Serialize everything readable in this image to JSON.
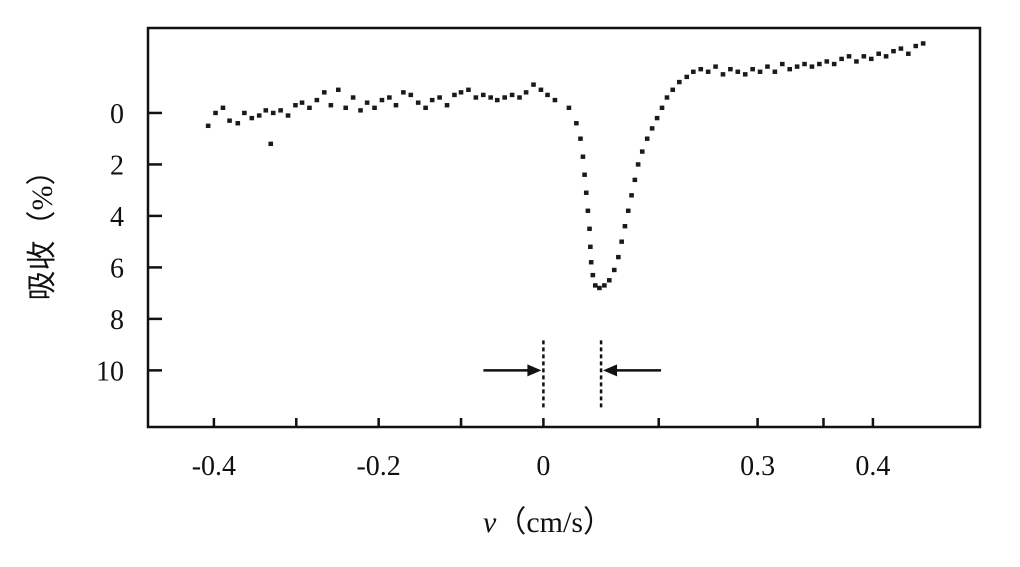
{
  "chart_data": {
    "type": "scatter",
    "title": "",
    "xlabel_var": "v",
    "xlabel_unit": "（cm/s）",
    "ylabel": "吸收（%）",
    "x_ticks": [
      {
        "label": "-0.4",
        "value": -0.4
      },
      {
        "label": "-0.2",
        "value": -0.2
      },
      {
        "label": "0",
        "value": 0.0
      },
      {
        "label": "0.3",
        "value": 0.26
      },
      {
        "label": "0.4",
        "value": 0.4
      }
    ],
    "x_minor_ticks": [
      -0.3,
      -0.1,
      0.14,
      0.34
    ],
    "y_ticks": [
      {
        "label": "0",
        "value": 0
      },
      {
        "label": "2",
        "value": 2
      },
      {
        "label": "4",
        "value": 4
      },
      {
        "label": "6",
        "value": 6
      },
      {
        "label": "8",
        "value": 8
      },
      {
        "label": "10",
        "value": 10
      }
    ],
    "xlim": [
      -0.48,
      0.53
    ],
    "ylim": [
      -3.3,
      12.2
    ],
    "y_inverted": true,
    "grid": false,
    "linewidth_marker": {
      "y": 10,
      "left_x": 0.0,
      "right_x": 0.07
    },
    "series": [
      {
        "values": [
          [
            -0.407,
            0.5
          ],
          [
            -0.398,
            0.0
          ],
          [
            -0.389,
            -0.2
          ],
          [
            -0.381,
            0.3
          ],
          [
            -0.371,
            0.4
          ],
          [
            -0.363,
            0.0
          ],
          [
            -0.354,
            0.2
          ],
          [
            -0.345,
            0.1
          ],
          [
            -0.337,
            -0.1
          ],
          [
            -0.328,
            0.0
          ],
          [
            -0.319,
            -0.1
          ],
          [
            -0.31,
            0.1
          ],
          [
            -0.301,
            -0.3
          ],
          [
            -0.293,
            -0.4
          ],
          [
            -0.284,
            -0.2
          ],
          [
            -0.275,
            -0.5
          ],
          [
            -0.266,
            -0.8
          ],
          [
            -0.258,
            -0.3
          ],
          [
            -0.249,
            -0.9
          ],
          [
            -0.24,
            -0.2
          ],
          [
            -0.231,
            -0.6
          ],
          [
            -0.222,
            -0.1
          ],
          [
            -0.214,
            -0.4
          ],
          [
            -0.205,
            -0.2
          ],
          [
            -0.196,
            -0.5
          ],
          [
            -0.187,
            -0.6
          ],
          [
            -0.179,
            -0.3
          ],
          [
            -0.17,
            -0.8
          ],
          [
            -0.161,
            -0.7
          ],
          [
            -0.152,
            -0.4
          ],
          [
            -0.143,
            -0.2
          ],
          [
            -0.135,
            -0.5
          ],
          [
            -0.126,
            -0.6
          ],
          [
            -0.117,
            -0.3
          ],
          [
            -0.108,
            -0.7
          ],
          [
            -0.1,
            -0.8
          ],
          [
            -0.091,
            -0.9
          ],
          [
            -0.082,
            -0.6
          ],
          [
            -0.073,
            -0.7
          ],
          [
            -0.064,
            -0.6
          ],
          [
            -0.056,
            -0.5
          ],
          [
            -0.047,
            -0.6
          ],
          [
            -0.038,
            -0.7
          ],
          [
            -0.029,
            -0.6
          ],
          [
            -0.021,
            -0.8
          ],
          [
            -0.012,
            -1.1
          ],
          [
            -0.003,
            -0.9
          ],
          [
            0.005,
            -0.7
          ],
          [
            0.014,
            -0.5
          ],
          [
            0.031,
            -0.2
          ],
          [
            0.04,
            0.4
          ],
          [
            0.045,
            1.0
          ],
          [
            0.048,
            1.7
          ],
          [
            0.05,
            2.4
          ],
          [
            0.052,
            3.1
          ],
          [
            0.054,
            3.8
          ],
          [
            0.056,
            4.5
          ],
          [
            0.057,
            5.2
          ],
          [
            0.058,
            5.8
          ],
          [
            0.06,
            6.3
          ],
          [
            0.063,
            6.7
          ],
          [
            0.068,
            6.8
          ],
          [
            0.074,
            6.7
          ],
          [
            0.08,
            6.5
          ],
          [
            0.086,
            6.1
          ],
          [
            0.091,
            5.6
          ],
          [
            0.095,
            5.0
          ],
          [
            0.099,
            4.4
          ],
          [
            0.103,
            3.8
          ],
          [
            0.107,
            3.2
          ],
          [
            0.111,
            2.6
          ],
          [
            0.115,
            2.0
          ],
          [
            0.12,
            1.5
          ],
          [
            0.126,
            1.0
          ],
          [
            0.132,
            0.6
          ],
          [
            0.138,
            0.2
          ],
          [
            0.144,
            -0.2
          ],
          [
            0.15,
            -0.6
          ],
          [
            0.157,
            -0.9
          ],
          [
            0.165,
            -1.2
          ],
          [
            0.174,
            -1.4
          ],
          [
            0.182,
            -1.6
          ],
          [
            0.191,
            -1.7
          ],
          [
            0.2,
            -1.6
          ],
          [
            0.209,
            -1.8
          ],
          [
            0.218,
            -1.5
          ],
          [
            0.227,
            -1.7
          ],
          [
            0.236,
            -1.6
          ],
          [
            0.245,
            -1.5
          ],
          [
            0.254,
            -1.7
          ],
          [
            0.263,
            -1.6
          ],
          [
            0.272,
            -1.8
          ],
          [
            0.281,
            -1.6
          ],
          [
            0.29,
            -1.9
          ],
          [
            0.299,
            -1.7
          ],
          [
            0.308,
            -1.8
          ],
          [
            0.317,
            -1.9
          ],
          [
            0.326,
            -1.8
          ],
          [
            0.335,
            -1.9
          ],
          [
            0.344,
            -2.0
          ],
          [
            0.353,
            -1.9
          ],
          [
            0.362,
            -2.1
          ],
          [
            0.371,
            -2.2
          ],
          [
            0.38,
            -2.0
          ],
          [
            0.389,
            -2.2
          ],
          [
            0.398,
            -2.1
          ],
          [
            0.407,
            -2.3
          ],
          [
            0.416,
            -2.2
          ],
          [
            0.425,
            -2.4
          ],
          [
            0.434,
            -2.5
          ],
          [
            0.443,
            -2.3
          ],
          [
            0.452,
            -2.6
          ],
          [
            0.461,
            -2.7
          ],
          [
            -0.331,
            1.2
          ]
        ]
      }
    ]
  }
}
